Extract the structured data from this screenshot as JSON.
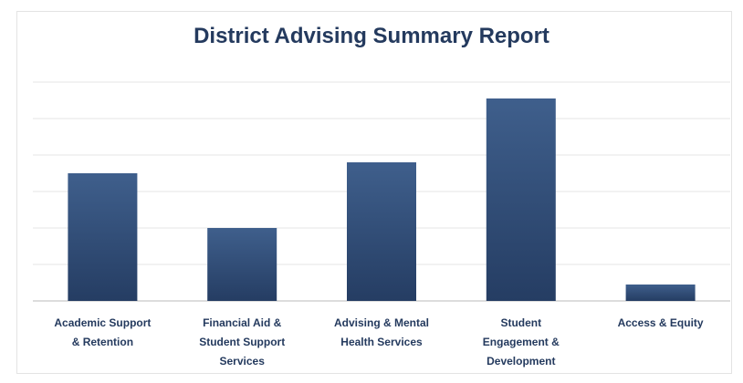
{
  "chart_data": {
    "type": "bar",
    "title": "District Advising Summary Report",
    "categories": [
      "Academic Support & Retention",
      "Financial Aid & Student Support Services",
      "Advising & Mental Health Services",
      "Student Engagement & Development",
      "Access & Equity"
    ],
    "category_label_lines": [
      [
        "Academic Support",
        "& Retention"
      ],
      [
        "Financial Aid &",
        "Student Support",
        "Services"
      ],
      [
        "Advising & Mental",
        "Health Services"
      ],
      [
        "Student",
        "Engagement &",
        "Development"
      ],
      [
        "Access & Equity"
      ]
    ],
    "values": [
      7,
      4,
      7.6,
      11.1,
      0.9
    ],
    "ylim": [
      0,
      12
    ],
    "gridlines": true,
    "legend": "none",
    "bar_color_top": "#3f5f8c",
    "bar_color_bottom": "#253d63"
  }
}
